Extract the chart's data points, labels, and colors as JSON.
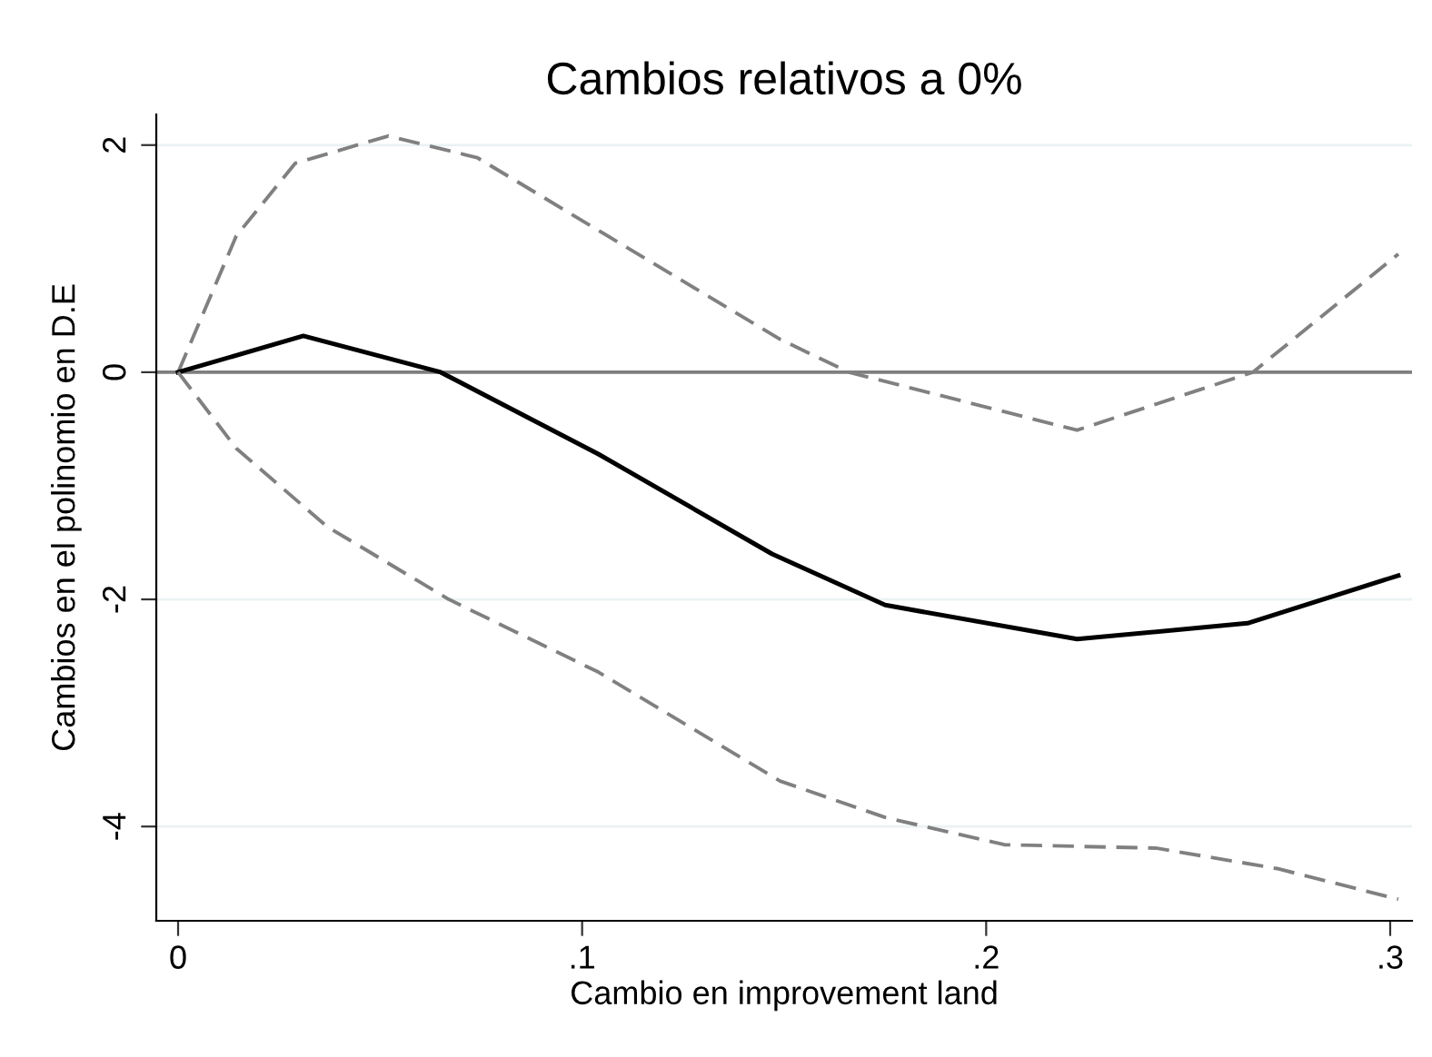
{
  "chart_data": {
    "type": "line",
    "title": "Cambios relativos a 0%",
    "xlabel": "Cambio en improvement land",
    "ylabel": "Cambios en el polinomio en D.E",
    "series": [
      {
        "color": "#808080",
        "line_style": "dashed",
        "x": [
          0,
          0.0144,
          0.029,
          0.052,
          0.074,
          0.104,
          0.149,
          0.166,
          0.2225,
          0.266,
          0.302
        ],
        "values": [
          0,
          1.2,
          1.84,
          2.08,
          1.89,
          1.25,
          0.29,
          0,
          -0.51,
          0,
          1.04
        ]
      },
      {
        "color": "#000000",
        "line_style": "solid",
        "x": [
          0,
          0.031,
          0.065,
          0.104,
          0.147,
          0.175,
          0.2225,
          0.2647,
          0.302
        ],
        "values": [
          0,
          0.32,
          0,
          -0.72,
          -1.6,
          -2.05,
          -2.35,
          -2.21,
          -1.79
        ]
      },
      {
        "color": "#808080",
        "line_style": "dashed",
        "x": [
          0,
          0.0144,
          0.0369,
          0.067,
          0.104,
          0.149,
          0.175,
          0.2045,
          0.242,
          0.272,
          0.302
        ],
        "values": [
          0,
          -0.67,
          -1.36,
          -2.0,
          -2.64,
          -3.6,
          -3.92,
          -4.16,
          -4.19,
          -4.37,
          -4.64
        ]
      }
    ],
    "xlim": [
      -0.0054,
      0.3054
    ],
    "ylim": [
      -4.83,
      2.27
    ],
    "xticks": [
      0,
      {
        "value": 0.1,
        "label": ".1"
      },
      {
        "value": 0.2,
        "label": ".2"
      },
      {
        "value": 0.3,
        "label": ".3"
      }
    ],
    "yticks": [
      -4,
      -2,
      0,
      2
    ],
    "grid": "y",
    "ref_lines": [
      {
        "axis": "y",
        "value": 0,
        "color": "#7f7f7f",
        "line_style": "solid"
      }
    ]
  }
}
